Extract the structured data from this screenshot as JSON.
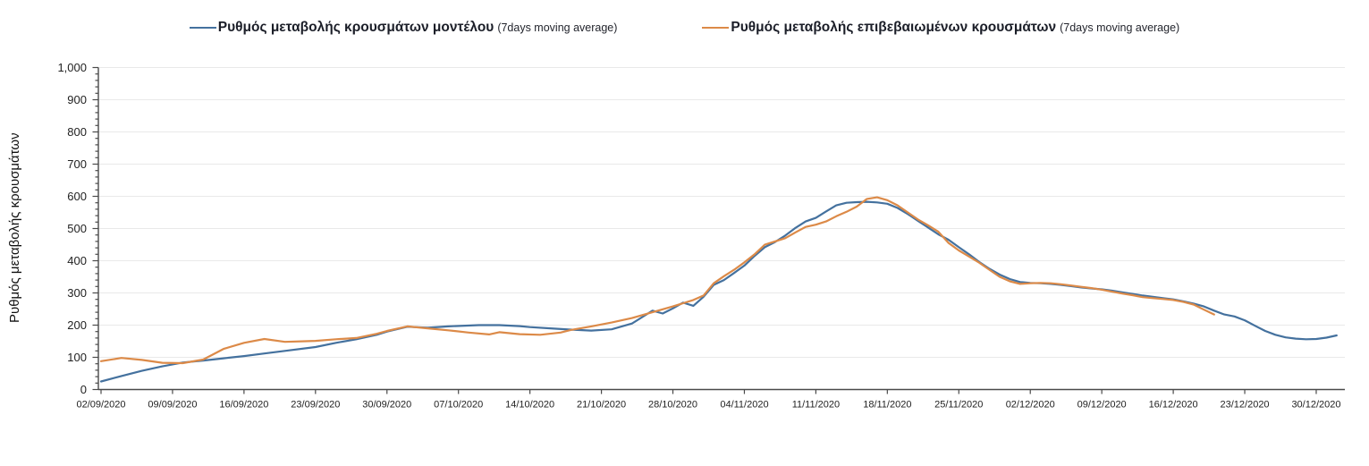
{
  "legend": {
    "items": [
      {
        "label": "Ρυθμός μεταβολής κρουσμάτων μοντέλου",
        "suffix": "(7days moving average)",
        "color": "#44719E"
      },
      {
        "label": "Ρυθμός μεταβολής επιβεβαιωμένων κρουσμάτων",
        "suffix": "(7days moving average)",
        "color": "#DC8A48"
      }
    ]
  },
  "chart_data": {
    "type": "line",
    "title": "",
    "xlabel": "",
    "ylabel": "Ρυθμός μεταβολής κρουσμάτων",
    "ylim": [
      0,
      1000
    ],
    "y_tick_step": 100,
    "y_minor_tick_step": 20,
    "grid": "horizontal",
    "legend_position": "top",
    "axis_color": "#4a4a4a",
    "grid_color": "#e9e9e9",
    "label_color": "#222222",
    "x_tick_spacing_days": 7,
    "x_tick_labels": [
      "02/09/2020",
      "09/09/2020",
      "16/09/2020",
      "23/09/2020",
      "30/09/2020",
      "07/10/2020",
      "14/10/2020",
      "21/10/2020",
      "28/10/2020",
      "04/11/2020",
      "11/11/2020",
      "18/11/2020",
      "25/11/2020",
      "02/12/2020",
      "09/12/2020",
      "16/12/2020",
      "23/12/2020",
      "30/12/2020"
    ],
    "series": [
      {
        "name": "Ρυθμός μεταβολής κρουσμάτων μοντέλου",
        "note": "(7days moving average)",
        "color": "#44719E",
        "points": [
          [
            0,
            25
          ],
          [
            2,
            42
          ],
          [
            4,
            58
          ],
          [
            6,
            72
          ],
          [
            8,
            84
          ],
          [
            10,
            90
          ],
          [
            12,
            97
          ],
          [
            14,
            104
          ],
          [
            16,
            112
          ],
          [
            18,
            120
          ],
          [
            21,
            132
          ],
          [
            23,
            145
          ],
          [
            25,
            156
          ],
          [
            27,
            170
          ],
          [
            28,
            180
          ],
          [
            30,
            195
          ],
          [
            32,
            192
          ],
          [
            34,
            196
          ],
          [
            37,
            200
          ],
          [
            39,
            200
          ],
          [
            41,
            197
          ],
          [
            42,
            194
          ],
          [
            44,
            190
          ],
          [
            46,
            186
          ],
          [
            48,
            183
          ],
          [
            50,
            187
          ],
          [
            52,
            205
          ],
          [
            53,
            225
          ],
          [
            54,
            245
          ],
          [
            55,
            236
          ],
          [
            56,
            252
          ],
          [
            57,
            270
          ],
          [
            58,
            260
          ],
          [
            59,
            288
          ],
          [
            60,
            325
          ],
          [
            61,
            340
          ],
          [
            62,
            362
          ],
          [
            63,
            385
          ],
          [
            64,
            415
          ],
          [
            65,
            442
          ],
          [
            66,
            458
          ],
          [
            67,
            478
          ],
          [
            68,
            502
          ],
          [
            69,
            522
          ],
          [
            70,
            533
          ],
          [
            71,
            553
          ],
          [
            72,
            572
          ],
          [
            73,
            580
          ],
          [
            74,
            582
          ],
          [
            75,
            583
          ],
          [
            76,
            581
          ],
          [
            77,
            577
          ],
          [
            78,
            564
          ],
          [
            79,
            545
          ],
          [
            80,
            524
          ],
          [
            81,
            503
          ],
          [
            82,
            482
          ],
          [
            83,
            465
          ],
          [
            84,
            442
          ],
          [
            85,
            420
          ],
          [
            86,
            396
          ],
          [
            87,
            375
          ],
          [
            88,
            357
          ],
          [
            89,
            343
          ],
          [
            90,
            334
          ],
          [
            91,
            331
          ],
          [
            92,
            330
          ],
          [
            93,
            328
          ],
          [
            94,
            325
          ],
          [
            95,
            321
          ],
          [
            96,
            317
          ],
          [
            97,
            314
          ],
          [
            98,
            311
          ],
          [
            99,
            307
          ],
          [
            100,
            302
          ],
          [
            101,
            297
          ],
          [
            102,
            292
          ],
          [
            103,
            288
          ],
          [
            104,
            284
          ],
          [
            105,
            280
          ],
          [
            106,
            274
          ],
          [
            107,
            267
          ],
          [
            108,
            258
          ],
          [
            109,
            245
          ],
          [
            110,
            233
          ],
          [
            111,
            227
          ],
          [
            112,
            215
          ],
          [
            113,
            198
          ],
          [
            114,
            182
          ],
          [
            115,
            170
          ],
          [
            116,
            162
          ],
          [
            117,
            158
          ],
          [
            118,
            156
          ],
          [
            119,
            157
          ],
          [
            120,
            161
          ],
          [
            121,
            168
          ]
        ]
      },
      {
        "name": "Ρυθμός μεταβολής επιβεβαιωμένων κρουσμάτων",
        "note": "(7days moving average)",
        "color": "#DC8A48",
        "points": [
          [
            0,
            88
          ],
          [
            2,
            98
          ],
          [
            4,
            92
          ],
          [
            6,
            83
          ],
          [
            8,
            82
          ],
          [
            10,
            93
          ],
          [
            12,
            126
          ],
          [
            14,
            145
          ],
          [
            16,
            157
          ],
          [
            18,
            148
          ],
          [
            20,
            150
          ],
          [
            21,
            151
          ],
          [
            23,
            156
          ],
          [
            25,
            160
          ],
          [
            27,
            173
          ],
          [
            28,
            182
          ],
          [
            30,
            196
          ],
          [
            32,
            190
          ],
          [
            34,
            184
          ],
          [
            36,
            177
          ],
          [
            38,
            171
          ],
          [
            39,
            178
          ],
          [
            41,
            172
          ],
          [
            43,
            170
          ],
          [
            45,
            177
          ],
          [
            46,
            185
          ],
          [
            48,
            196
          ],
          [
            50,
            208
          ],
          [
            52,
            222
          ],
          [
            54,
            240
          ],
          [
            56,
            258
          ],
          [
            57,
            268
          ],
          [
            58,
            278
          ],
          [
            59,
            292
          ],
          [
            60,
            330
          ],
          [
            61,
            352
          ],
          [
            62,
            372
          ],
          [
            63,
            395
          ],
          [
            64,
            420
          ],
          [
            65,
            450
          ],
          [
            66,
            460
          ],
          [
            67,
            470
          ],
          [
            68,
            488
          ],
          [
            69,
            505
          ],
          [
            70,
            512
          ],
          [
            71,
            522
          ],
          [
            72,
            538
          ],
          [
            73,
            552
          ],
          [
            74,
            568
          ],
          [
            75,
            592
          ],
          [
            76,
            597
          ],
          [
            77,
            588
          ],
          [
            78,
            572
          ],
          [
            79,
            550
          ],
          [
            80,
            528
          ],
          [
            81,
            510
          ],
          [
            82,
            490
          ],
          [
            83,
            455
          ],
          [
            84,
            432
          ],
          [
            85,
            413
          ],
          [
            86,
            394
          ],
          [
            87,
            372
          ],
          [
            88,
            350
          ],
          [
            89,
            336
          ],
          [
            90,
            328
          ],
          [
            91,
            330
          ],
          [
            92,
            331
          ],
          [
            93,
            330
          ],
          [
            94,
            327
          ],
          [
            95,
            323
          ],
          [
            96,
            319
          ],
          [
            97,
            315
          ],
          [
            98,
            310
          ],
          [
            99,
            304
          ],
          [
            100,
            298
          ],
          [
            101,
            293
          ],
          [
            102,
            287
          ],
          [
            103,
            284
          ],
          [
            104,
            281
          ],
          [
            105,
            278
          ],
          [
            106,
            272
          ],
          [
            107,
            264
          ],
          [
            108,
            248
          ],
          [
            109,
            233
          ]
        ]
      }
    ]
  }
}
